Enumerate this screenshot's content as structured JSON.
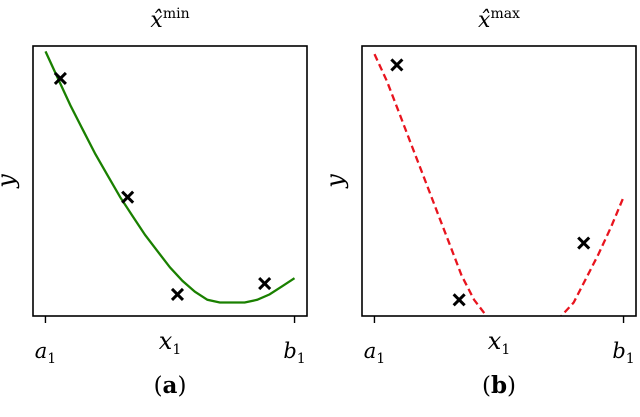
{
  "chart_data": [
    {
      "type": "scatter",
      "panel_caption": {
        "open": "(",
        "letter": "a",
        "close": ")"
      },
      "title": {
        "base": "x̂",
        "sup": "min"
      },
      "xlabel": {
        "base": "x",
        "sub": "1"
      },
      "ylabel": "y",
      "xlim": [
        -0.05,
        1.05
      ],
      "ylim": [
        0,
        1
      ],
      "xticks": [
        {
          "x": 0,
          "base": "a",
          "sub": "1"
        },
        {
          "x": 1,
          "base": "b",
          "sub": "1"
        }
      ],
      "grid": false,
      "legend": "none",
      "points": [
        {
          "x": 0.06,
          "y": 0.88
        },
        {
          "x": 0.33,
          "y": 0.44
        },
        {
          "x": 0.53,
          "y": 0.08
        },
        {
          "x": 0.88,
          "y": 0.12
        }
      ],
      "curve": {
        "style": "solid",
        "color": "#1a8000",
        "x": [
          0.0,
          0.05,
          0.1,
          0.15,
          0.2,
          0.25,
          0.3,
          0.35,
          0.4,
          0.45,
          0.5,
          0.55,
          0.6,
          0.65,
          0.7,
          0.75,
          0.8,
          0.85,
          0.9,
          0.95,
          1.0
        ],
        "y": [
          0.98,
          0.88,
          0.78,
          0.69,
          0.6,
          0.52,
          0.44,
          0.37,
          0.3,
          0.24,
          0.18,
          0.13,
          0.09,
          0.06,
          0.05,
          0.05,
          0.05,
          0.06,
          0.08,
          0.11,
          0.14
        ]
      },
      "marker_color": "#000000"
    },
    {
      "type": "scatter",
      "panel_caption": {
        "open": "(",
        "letter": "b",
        "close": ")"
      },
      "title": {
        "base": "x̂",
        "sup": "max"
      },
      "xlabel": {
        "base": "x",
        "sub": "1"
      },
      "ylabel": "y",
      "xlim": [
        -0.05,
        1.05
      ],
      "ylim": [
        0,
        1
      ],
      "xticks": [
        {
          "x": 0,
          "base": "a",
          "sub": "1"
        },
        {
          "x": 1,
          "base": "b",
          "sub": "1"
        }
      ],
      "grid": false,
      "legend": "none",
      "points": [
        {
          "x": 0.09,
          "y": 0.93
        },
        {
          "x": 0.34,
          "y": 0.06
        },
        {
          "x": 0.84,
          "y": 0.27
        }
      ],
      "curve": {
        "style": "dashed",
        "color": "#e8141e",
        "x": [
          0.0,
          0.05,
          0.1,
          0.15,
          0.2,
          0.25,
          0.3,
          0.35,
          0.4,
          0.45,
          0.5,
          0.55,
          0.6,
          0.65,
          0.7,
          0.75,
          0.8,
          0.85,
          0.9,
          0.95,
          1.0
        ],
        "y": [
          0.97,
          0.87,
          0.75,
          0.63,
          0.51,
          0.39,
          0.27,
          0.15,
          0.06,
          0.0,
          -0.04,
          -0.05,
          -0.05,
          -0.05,
          -0.04,
          0.0,
          0.05,
          0.14,
          0.23,
          0.33,
          0.44
        ]
      },
      "marker_color": "#000000"
    }
  ]
}
